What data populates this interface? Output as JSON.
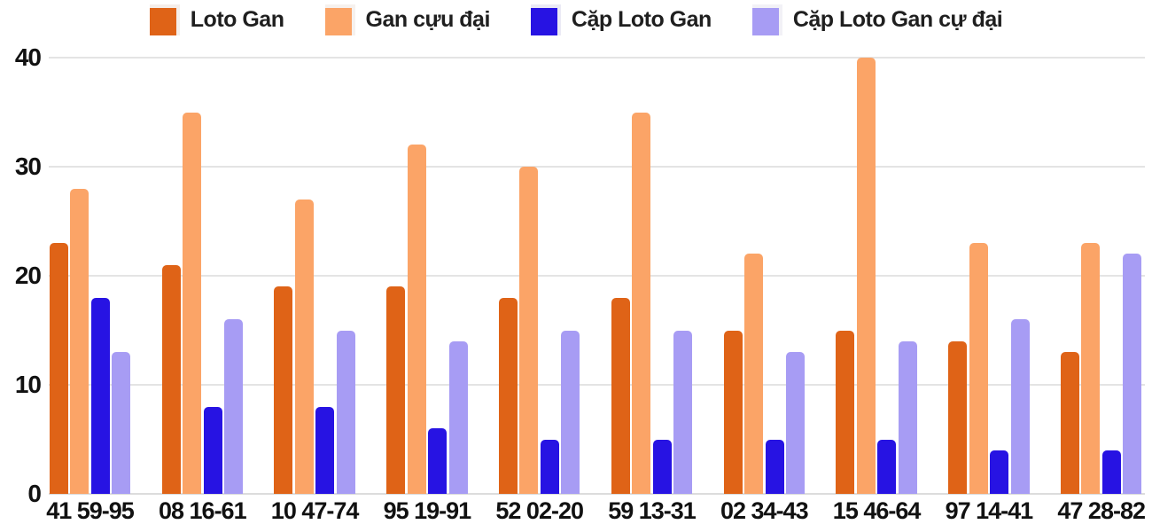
{
  "chart_data": {
    "type": "bar",
    "title": "",
    "xlabel": "",
    "ylabel": "",
    "categories": [
      "41 59-95",
      "08 16-61",
      "10 47-74",
      "95 19-91",
      "52 02-20",
      "59 13-31",
      "02 34-43",
      "15 46-64",
      "97 14-41",
      "47 28-82"
    ],
    "series": [
      {
        "name": "Loto Gan",
        "color": "#df6317",
        "values": [
          23,
          21,
          19,
          19,
          18,
          18,
          15,
          15,
          14,
          13
        ]
      },
      {
        "name": "Gan cựu đại",
        "color": "#fba467",
        "values": [
          28,
          35,
          27,
          32,
          30,
          35,
          22,
          40,
          23,
          23
        ]
      },
      {
        "name": "Cặp Loto Gan",
        "color": "#2713e3",
        "values": [
          18,
          8,
          8,
          6,
          5,
          5,
          5,
          5,
          4,
          4
        ]
      },
      {
        "name": "Cặp Loto Gan cự đại",
        "color": "#a79cf4",
        "values": [
          13,
          16,
          15,
          14,
          15,
          15,
          13,
          14,
          16,
          22
        ]
      }
    ],
    "ylim": [
      0,
      40
    ],
    "yticks": [
      0,
      10,
      20,
      30,
      40
    ],
    "grid": true,
    "legend_position": "top"
  },
  "colors": {
    "background": "#ffffff",
    "gridline": "#e4e4e4",
    "axis_text": "#111111",
    "legend_text": "#1f1f1f"
  }
}
